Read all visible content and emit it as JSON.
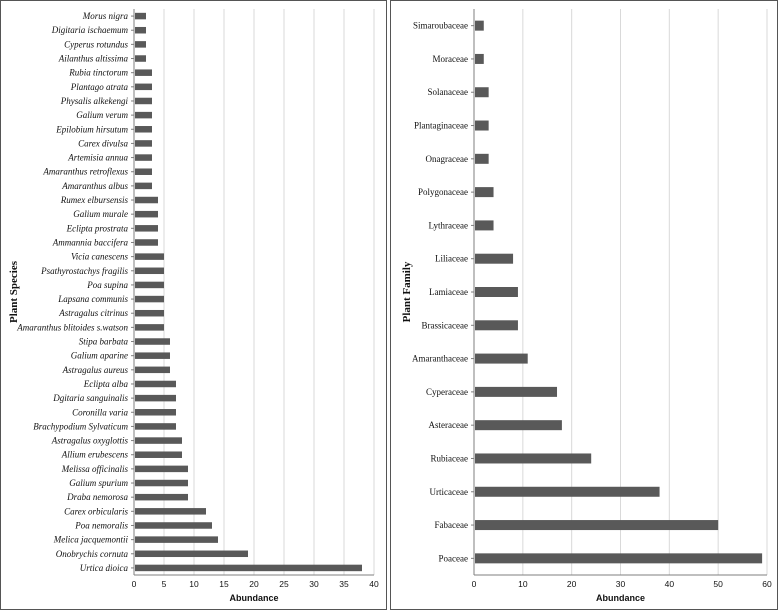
{
  "colors": {
    "bar": "#595959",
    "grid": "#d9d9d9",
    "axis": "#7f7f7f"
  },
  "chart_data": [
    {
      "type": "bar",
      "orientation": "horizontal",
      "xlabel": "Abundance",
      "ylabel": "Plant Species",
      "xlim": [
        0,
        40
      ],
      "xticks": [
        0,
        5,
        10,
        15,
        20,
        25,
        30,
        35,
        40
      ],
      "grid": true,
      "categories": [
        "Morus nigra",
        "Digitaria ischaemum",
        "Cyperus rotundus",
        "Ailanthus altissima",
        "Rubia tinctorum",
        "Plantago atrata",
        "Physalis alkekengi",
        "Galium verum",
        "Epilobium hirsutum",
        "Carex divulsa",
        "Artemisia annua",
        "Amaranthus retroflexus",
        "Amaranthus albus",
        "Rumex elbursensis",
        "Galium murale",
        "Eclipta prostrata",
        "Ammannia baccifera",
        "Vicia canescens",
        "Psathyrostachys fragilis",
        "Poa supina",
        "Lapsana communis",
        "Astragalus citrinus",
        "Amaranthus blitoides s.watson",
        "Stipa barbata",
        "Galium aparine",
        "Astragalus aureus",
        "Eclipta alba",
        "Dgitaria sanguinalis",
        "Coronilla varia",
        "Brachypodium Sylvaticum",
        "Astragalus oxyglottis",
        "Allium erubescens",
        "Melissa officinalis",
        "Galium spurium",
        "Draba nemorosa",
        "Carex orbicularis",
        "Poa nemoralis",
        "Melica jacquemontii",
        "Onobrychis cornuta",
        "Urtica dioica"
      ],
      "values": [
        2,
        2,
        2,
        2,
        3,
        3,
        3,
        3,
        3,
        3,
        3,
        3,
        3,
        4,
        4,
        4,
        4,
        5,
        5,
        5,
        5,
        5,
        5,
        6,
        6,
        6,
        7,
        7,
        7,
        7,
        8,
        8,
        9,
        9,
        9,
        12,
        13,
        14,
        19,
        38
      ]
    },
    {
      "type": "bar",
      "orientation": "horizontal",
      "xlabel": "Abundance",
      "ylabel": "Plant Family",
      "xlim": [
        0,
        60
      ],
      "xticks": [
        0,
        10,
        20,
        30,
        40,
        50,
        60
      ],
      "grid": true,
      "categories": [
        "Simaroubaceae",
        "Moraceae",
        "Solanaceae",
        "Plantaginaceae",
        "Onagraceae",
        "Polygonaceae",
        "Lythraceae",
        "Liliaceae",
        "Lamiaceae",
        "Brassicaceae",
        "Amaranthaceae",
        "Cyperaceae",
        "Asteraceae",
        "Rubiaceae",
        "Urticaceae",
        "Fabaceae",
        "Poaceae"
      ],
      "values": [
        2,
        2,
        3,
        3,
        3,
        4,
        4,
        8,
        9,
        9,
        11,
        17,
        18,
        24,
        38,
        50,
        59
      ]
    }
  ]
}
